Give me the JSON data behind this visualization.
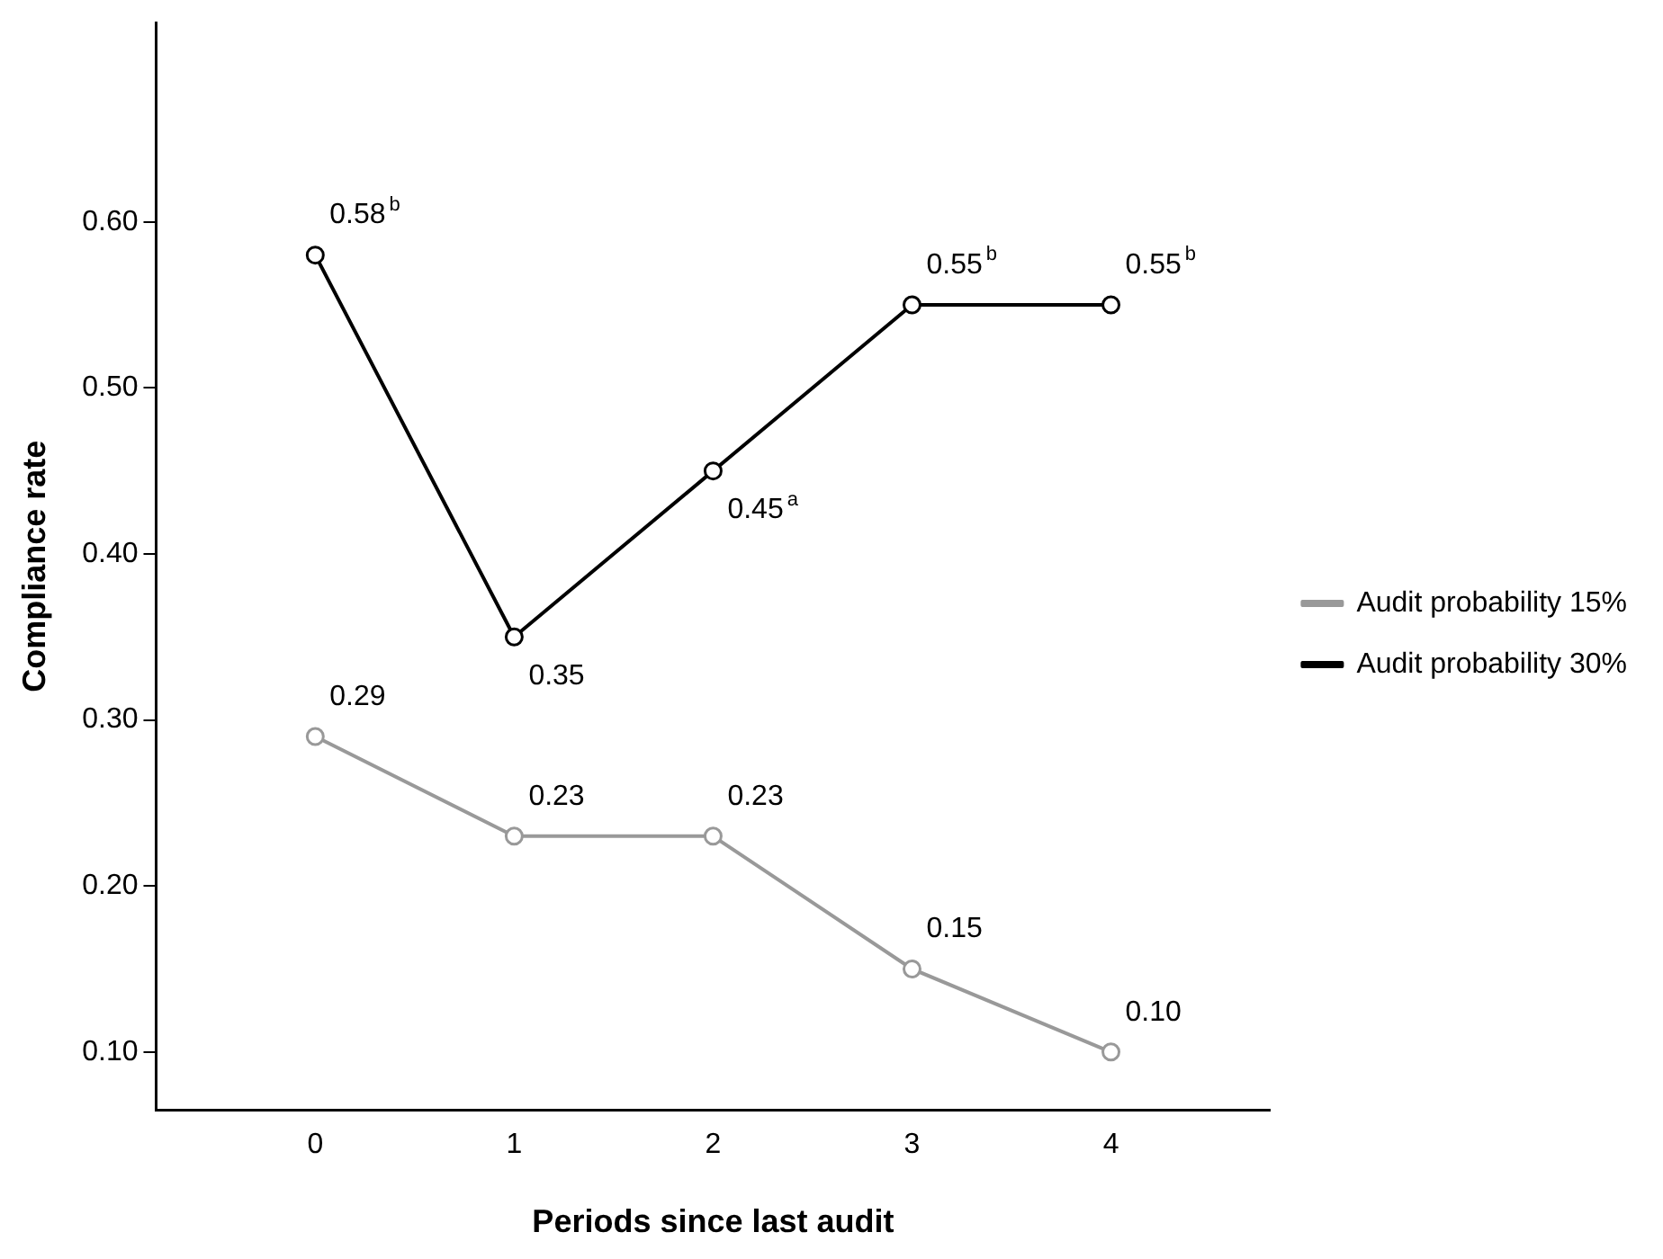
{
  "chart_data": {
    "type": "line",
    "xlabel": "Periods since last audit",
    "ylabel": "Compliance rate",
    "x": [
      0,
      1,
      2,
      3,
      4
    ],
    "xlim": [
      -0.8,
      4.8
    ],
    "xticks": [
      0,
      1,
      2,
      3,
      4
    ],
    "ylim": [
      0.065,
      0.72
    ],
    "yticks": [
      {
        "value": 0.1,
        "label": "0.10"
      },
      {
        "value": 0.2,
        "label": "0.20"
      },
      {
        "value": 0.3,
        "label": "0.30"
      },
      {
        "value": 0.4,
        "label": "0.40"
      },
      {
        "value": 0.5,
        "label": "0.50"
      },
      {
        "value": 0.6,
        "label": "0.60"
      }
    ],
    "series": [
      {
        "name": "Audit probability 15%",
        "color": "#999999",
        "values": [
          0.29,
          0.23,
          0.23,
          0.15,
          0.1
        ],
        "value_labels": [
          "0.29",
          "0.23",
          "0.23",
          "0.15",
          "0.10"
        ]
      },
      {
        "name": "Audit probability 30%",
        "color": "#000000",
        "values": [
          0.58,
          0.35,
          0.45,
          0.55,
          0.55
        ],
        "value_labels": [
          "0.58$^{b}$",
          "0.35",
          "0.45$^{a}$",
          "0.55$^{b}$",
          "0.55$^{b}$"
        ]
      }
    ],
    "marker": "circle",
    "line_style": "solid",
    "grid": false,
    "legend": "right"
  }
}
